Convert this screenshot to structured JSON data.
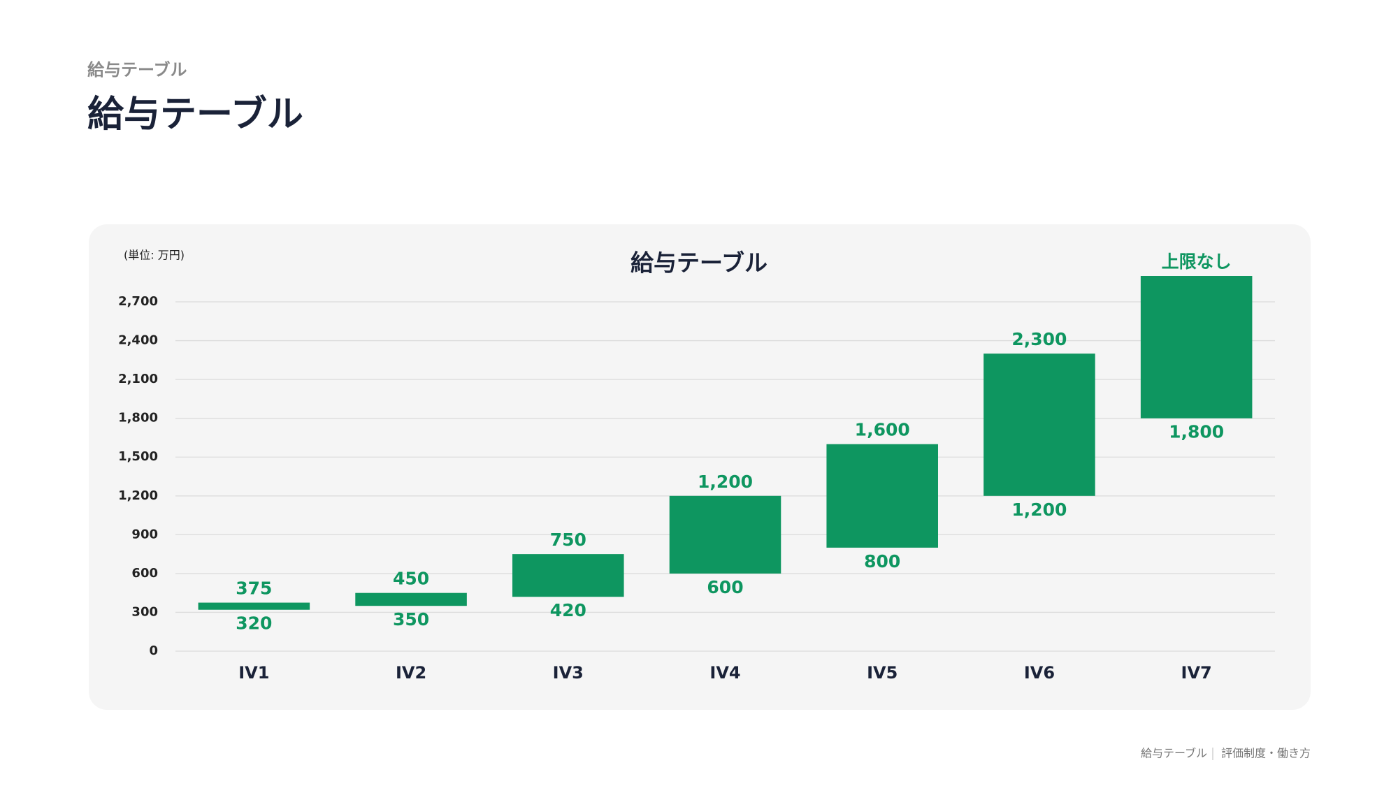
{
  "page": {
    "eyebrow": "給与テーブル",
    "title": "給与テーブル",
    "footer": {
      "section": "給与テーブル",
      "chapter": "評価制度・働き方"
    }
  },
  "chart_data": {
    "type": "rangebar",
    "title": "給与テーブル",
    "unit_label": "(単位: 万円)",
    "categories": [
      "IV1",
      "IV2",
      "IV3",
      "IV4",
      "IV5",
      "IV6",
      "IV7"
    ],
    "low": {
      "values": [
        320,
        350,
        420,
        600,
        800,
        1200,
        1800
      ],
      "value_labels": [
        "320",
        "350",
        "420",
        "600",
        "800",
        "1,200",
        "1,800"
      ]
    },
    "high": {
      "values": [
        375,
        450,
        750,
        1200,
        1600,
        2300,
        2900
      ],
      "value_labels": [
        "375",
        "450",
        "750",
        "1,200",
        "1,600",
        "2,300",
        "上限なし"
      ]
    },
    "color": "#0e9660",
    "ylim": [
      0,
      2900
    ],
    "yticks": [
      0,
      300,
      600,
      900,
      {
        "value": 1200,
        "label": "1,200"
      },
      {
        "value": 1500,
        "label": "1,500"
      },
      {
        "value": 1800,
        "label": "1,800"
      },
      {
        "value": 2100,
        "label": "2,100"
      },
      {
        "value": 2400,
        "label": "2,400"
      },
      {
        "value": 2700,
        "label": "2,700"
      }
    ],
    "grid": true
  }
}
